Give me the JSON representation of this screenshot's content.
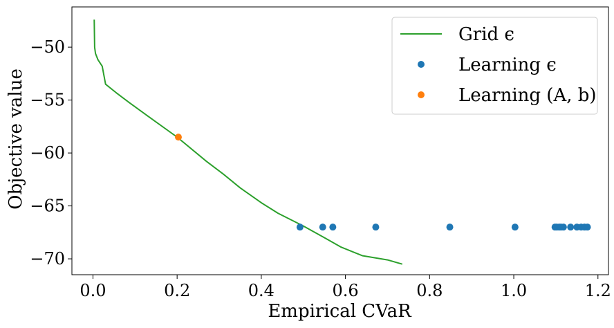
{
  "chart_data": {
    "type": "scatter",
    "xlabel": "Empirical CVaR",
    "ylabel": "Objective value",
    "xlim": [
      -0.05,
      1.225
    ],
    "ylim": [
      -71.5,
      -46.2
    ],
    "x_ticks": [
      0.0,
      0.2,
      0.4,
      0.6,
      0.8,
      1.0,
      1.2
    ],
    "x_tick_labels": [
      "0.0",
      "0.2",
      "0.4",
      "0.6",
      "0.8",
      "1.0",
      "1.2"
    ],
    "y_ticks": [
      -50,
      -55,
      -60,
      -65,
      -70
    ],
    "y_tick_labels": [
      "−50",
      "−55",
      "−60",
      "−65",
      "−70"
    ],
    "grid": false,
    "legend_position": "top-right",
    "series": [
      {
        "name": "Grid ϵ",
        "kind": "line",
        "color": "#2ca02c",
        "x": [
          0.003,
          0.004,
          0.006,
          0.012,
          0.022,
          0.03,
          0.055,
          0.085,
          0.13,
          0.2,
          0.27,
          0.31,
          0.35,
          0.4,
          0.44,
          0.5,
          0.55,
          0.59,
          0.64,
          0.7,
          0.735
        ],
        "y": [
          -47.4,
          -50.0,
          -50.6,
          -51.2,
          -51.8,
          -53.5,
          -54.3,
          -55.2,
          -56.5,
          -58.5,
          -60.8,
          -62.0,
          -63.3,
          -64.7,
          -65.7,
          -66.9,
          -68.0,
          -68.9,
          -69.7,
          -70.1,
          -70.5
        ]
      },
      {
        "name": "Learning ϵ",
        "kind": "scatter",
        "color": "#1f77b4",
        "x": [
          0.492,
          0.546,
          0.57,
          0.672,
          0.848,
          1.003,
          1.098,
          1.102,
          1.108,
          1.112,
          1.118,
          1.135,
          1.15,
          1.16,
          1.168,
          1.175
        ],
        "y": [
          -67.0,
          -67.0,
          -67.0,
          -67.0,
          -67.0,
          -67.0,
          -67.0,
          -67.0,
          -67.0,
          -67.0,
          -67.0,
          -67.0,
          -67.0,
          -67.0,
          -67.0,
          -67.0
        ]
      },
      {
        "name": "Learning (A, b)",
        "kind": "scatter",
        "color": "#ff7f0e",
        "x": [
          0.203
        ],
        "y": [
          -58.5
        ]
      }
    ]
  }
}
